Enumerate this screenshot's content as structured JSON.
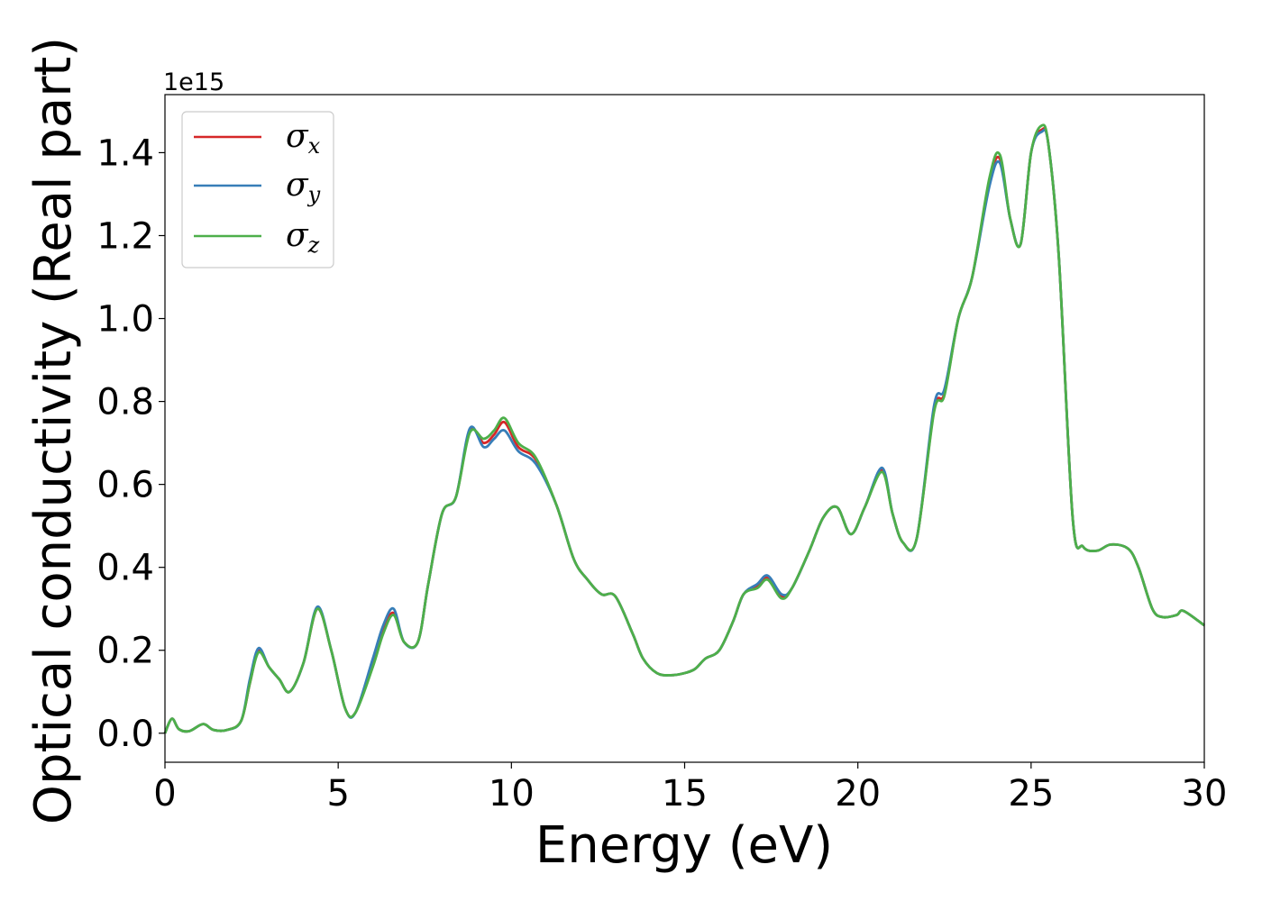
{
  "chart_data": {
    "type": "line",
    "xlabel": "Energy (eV)",
    "ylabel": "Optical conductivity (Real part)",
    "y_offset_text": "1e15",
    "y_scale_factor": 1000000000000000.0,
    "xlim": [
      0,
      30
    ],
    "ylim": [
      -0.07,
      1.54
    ],
    "x_ticks": [
      0,
      5,
      10,
      15,
      20,
      25,
      30
    ],
    "x_tick_labels": [
      "0",
      "5",
      "10",
      "15",
      "20",
      "25",
      "30"
    ],
    "y_ticks": [
      0.0,
      0.2,
      0.4,
      0.6,
      0.8,
      1.0,
      1.2,
      1.4
    ],
    "y_tick_labels": [
      "0.0",
      "0.2",
      "0.4",
      "0.6",
      "0.8",
      "1.0",
      "1.2",
      "1.4"
    ],
    "grid": false,
    "legend_position": "top-left",
    "x": [
      0,
      0.2,
      0.4,
      0.7,
      1.1,
      1.4,
      1.8,
      2.2,
      2.45,
      2.7,
      3.0,
      3.3,
      3.6,
      4.0,
      4.4,
      4.8,
      5.2,
      5.5,
      6.0,
      6.3,
      6.6,
      6.9,
      7.3,
      7.6,
      8.0,
      8.4,
      8.8,
      9.2,
      9.5,
      9.8,
      10.2,
      10.7,
      11.3,
      11.8,
      12.2,
      12.6,
      13.0,
      13.5,
      13.8,
      14.2,
      14.6,
      15.0,
      15.3,
      15.6,
      16.0,
      16.4,
      16.7,
      17.1,
      17.4,
      17.8,
      18.1,
      18.6,
      19.0,
      19.4,
      19.8,
      20.2,
      20.7,
      21.0,
      21.3,
      21.7,
      22.2,
      22.5,
      22.9,
      23.3,
      23.8,
      24.1,
      24.4,
      24.7,
      25.0,
      25.3,
      25.5,
      25.8,
      26.2,
      26.5,
      26.9,
      27.3,
      27.8,
      28.1,
      28.5,
      28.8,
      29.2,
      29.4,
      30.0
    ],
    "series": [
      {
        "name": "σx",
        "color": "#d62728",
        "values": [
          0.0,
          0.035,
          0.01,
          0.005,
          0.022,
          0.008,
          0.008,
          0.03,
          0.12,
          0.2,
          0.16,
          0.13,
          0.1,
          0.17,
          0.3,
          0.2,
          0.06,
          0.05,
          0.17,
          0.25,
          0.29,
          0.22,
          0.22,
          0.36,
          0.53,
          0.57,
          0.73,
          0.7,
          0.72,
          0.75,
          0.69,
          0.66,
          0.55,
          0.42,
          0.37,
          0.335,
          0.33,
          0.24,
          0.18,
          0.145,
          0.14,
          0.145,
          0.155,
          0.18,
          0.2,
          0.27,
          0.335,
          0.355,
          0.375,
          0.33,
          0.35,
          0.44,
          0.52,
          0.545,
          0.48,
          0.545,
          0.635,
          0.53,
          0.46,
          0.47,
          0.78,
          0.82,
          1.0,
          1.1,
          1.33,
          1.385,
          1.24,
          1.18,
          1.4,
          1.455,
          1.42,
          1.15,
          0.52,
          0.45,
          0.44,
          0.455,
          0.445,
          0.4,
          0.3,
          0.28,
          0.285,
          0.295,
          0.26
        ]
      },
      {
        "name": "σy",
        "color": "#377eb8",
        "values": [
          0.0,
          0.035,
          0.01,
          0.005,
          0.022,
          0.008,
          0.008,
          0.03,
          0.13,
          0.205,
          0.16,
          0.13,
          0.1,
          0.17,
          0.305,
          0.2,
          0.06,
          0.05,
          0.18,
          0.26,
          0.3,
          0.22,
          0.22,
          0.36,
          0.53,
          0.57,
          0.735,
          0.69,
          0.71,
          0.73,
          0.68,
          0.65,
          0.55,
          0.42,
          0.37,
          0.335,
          0.33,
          0.24,
          0.18,
          0.145,
          0.14,
          0.145,
          0.155,
          0.18,
          0.2,
          0.27,
          0.335,
          0.36,
          0.38,
          0.335,
          0.35,
          0.44,
          0.52,
          0.545,
          0.48,
          0.545,
          0.64,
          0.53,
          0.46,
          0.47,
          0.79,
          0.83,
          1.0,
          1.1,
          1.32,
          1.375,
          1.24,
          1.18,
          1.4,
          1.45,
          1.42,
          1.15,
          0.52,
          0.45,
          0.44,
          0.455,
          0.445,
          0.4,
          0.3,
          0.28,
          0.285,
          0.295,
          0.26
        ]
      },
      {
        "name": "σz",
        "color": "#4daf4a",
        "values": [
          0.0,
          0.035,
          0.01,
          0.005,
          0.022,
          0.008,
          0.008,
          0.03,
          0.12,
          0.195,
          0.16,
          0.13,
          0.1,
          0.17,
          0.3,
          0.2,
          0.06,
          0.05,
          0.16,
          0.24,
          0.285,
          0.22,
          0.22,
          0.36,
          0.53,
          0.57,
          0.725,
          0.71,
          0.73,
          0.76,
          0.7,
          0.665,
          0.55,
          0.42,
          0.37,
          0.335,
          0.33,
          0.24,
          0.18,
          0.145,
          0.14,
          0.145,
          0.155,
          0.18,
          0.2,
          0.27,
          0.335,
          0.35,
          0.37,
          0.325,
          0.35,
          0.44,
          0.52,
          0.545,
          0.48,
          0.545,
          0.63,
          0.53,
          0.46,
          0.47,
          0.775,
          0.815,
          1.0,
          1.1,
          1.34,
          1.395,
          1.24,
          1.18,
          1.4,
          1.465,
          1.42,
          1.15,
          0.52,
          0.45,
          0.44,
          0.455,
          0.445,
          0.4,
          0.3,
          0.28,
          0.285,
          0.295,
          0.26
        ]
      }
    ]
  },
  "legend": {
    "items": [
      {
        "symbol": "σ",
        "sub": "x",
        "color": "#d62728"
      },
      {
        "symbol": "σ",
        "sub": "y",
        "color": "#377eb8"
      },
      {
        "symbol": "σ",
        "sub": "z",
        "color": "#4daf4a"
      }
    ]
  }
}
